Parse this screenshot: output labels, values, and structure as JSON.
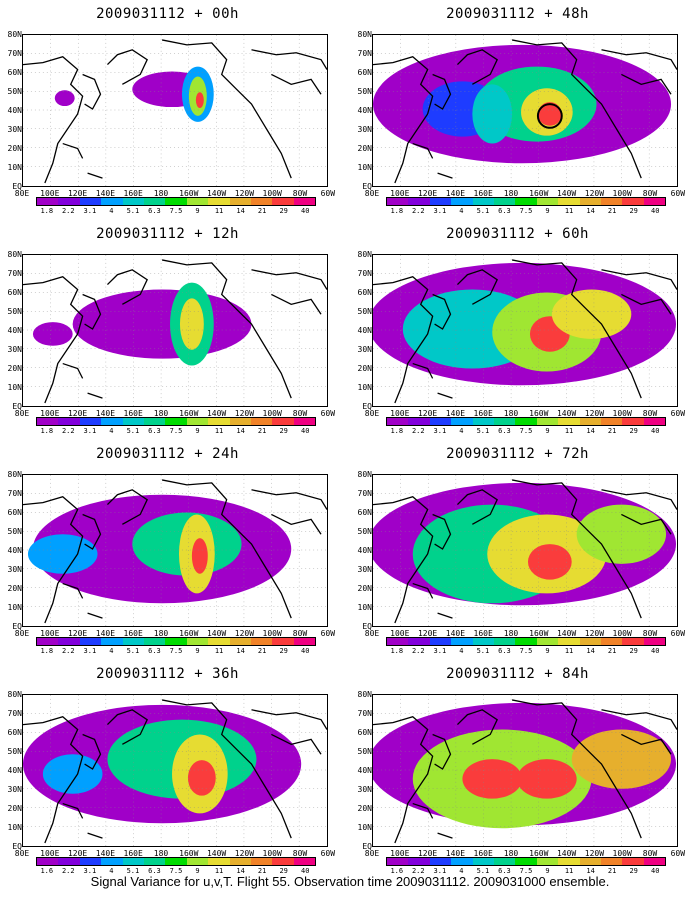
{
  "panels": [
    {
      "title": "2009031112 + 00h"
    },
    {
      "title": "2009031112 + 48h"
    },
    {
      "title": "2009031112 + 12h"
    },
    {
      "title": "2009031112 + 60h"
    },
    {
      "title": "2009031112 + 24h"
    },
    {
      "title": "2009031112 + 72h"
    },
    {
      "title": "2009031112 + 36h"
    },
    {
      "title": "2009031112 + 84h"
    }
  ],
  "y_labels": [
    "80N",
    "70N",
    "60N",
    "50N",
    "40N",
    "30N",
    "20N",
    "10N",
    "EQ"
  ],
  "x_labels": [
    "80E",
    "100E",
    "120E",
    "140E",
    "160E",
    "180",
    "160W",
    "140W",
    "120W",
    "100W",
    "80W",
    "60W"
  ],
  "colorbar": {
    "colors": [
      "#a000c8",
      "#8200dc",
      "#1e3cff",
      "#00a0ff",
      "#00c8c8",
      "#00d28c",
      "#00dc00",
      "#a0e632",
      "#e6dc32",
      "#e6af2d",
      "#f08228",
      "#fa3c3c",
      "#f00082"
    ],
    "tick_labels": [
      "1.8",
      "2.2",
      "3.1",
      "4",
      "5.1",
      "6.3",
      "7.5",
      "9",
      "11",
      "14",
      "21",
      "29",
      "40"
    ],
    "tick_labels_last": [
      "1.6",
      "2.2",
      "3.1",
      "4",
      "5.1",
      "6.3",
      "7.5",
      "9",
      "11",
      "14",
      "21",
      "29",
      "40"
    ]
  },
  "footer": "Signal Variance for u,v,T. Flight 55. Observation time 2009031112. 2009031000 ensemble."
}
